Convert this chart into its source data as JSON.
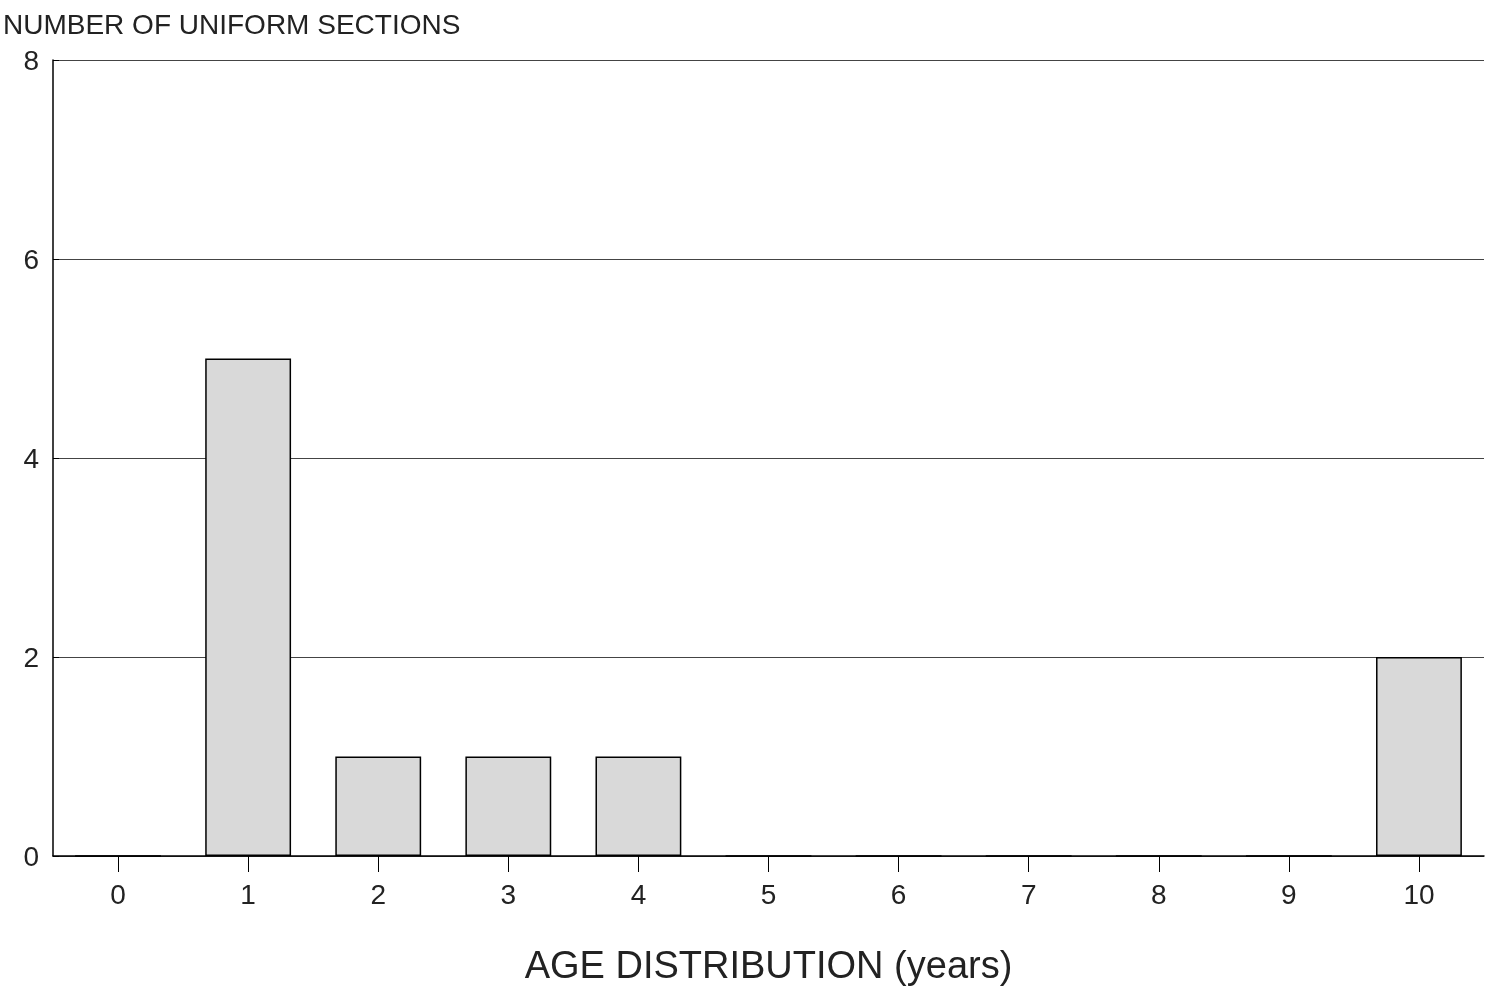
{
  "chart_data": {
    "type": "bar",
    "ylabel": "NUMBER OF UNIFORM SECTIONS",
    "xlabel": "AGE DISTRIBUTION (years)",
    "categories": [
      "0",
      "1",
      "2",
      "3",
      "4",
      "5",
      "6",
      "7",
      "8",
      "9",
      "10"
    ],
    "values": [
      0,
      5,
      1,
      1,
      1,
      0,
      0,
      0,
      0,
      0,
      2
    ],
    "color": "#d9d9d9",
    "ylim": [
      0,
      8
    ],
    "yticks": [
      0,
      2,
      4,
      6,
      8
    ],
    "grid": "y"
  }
}
